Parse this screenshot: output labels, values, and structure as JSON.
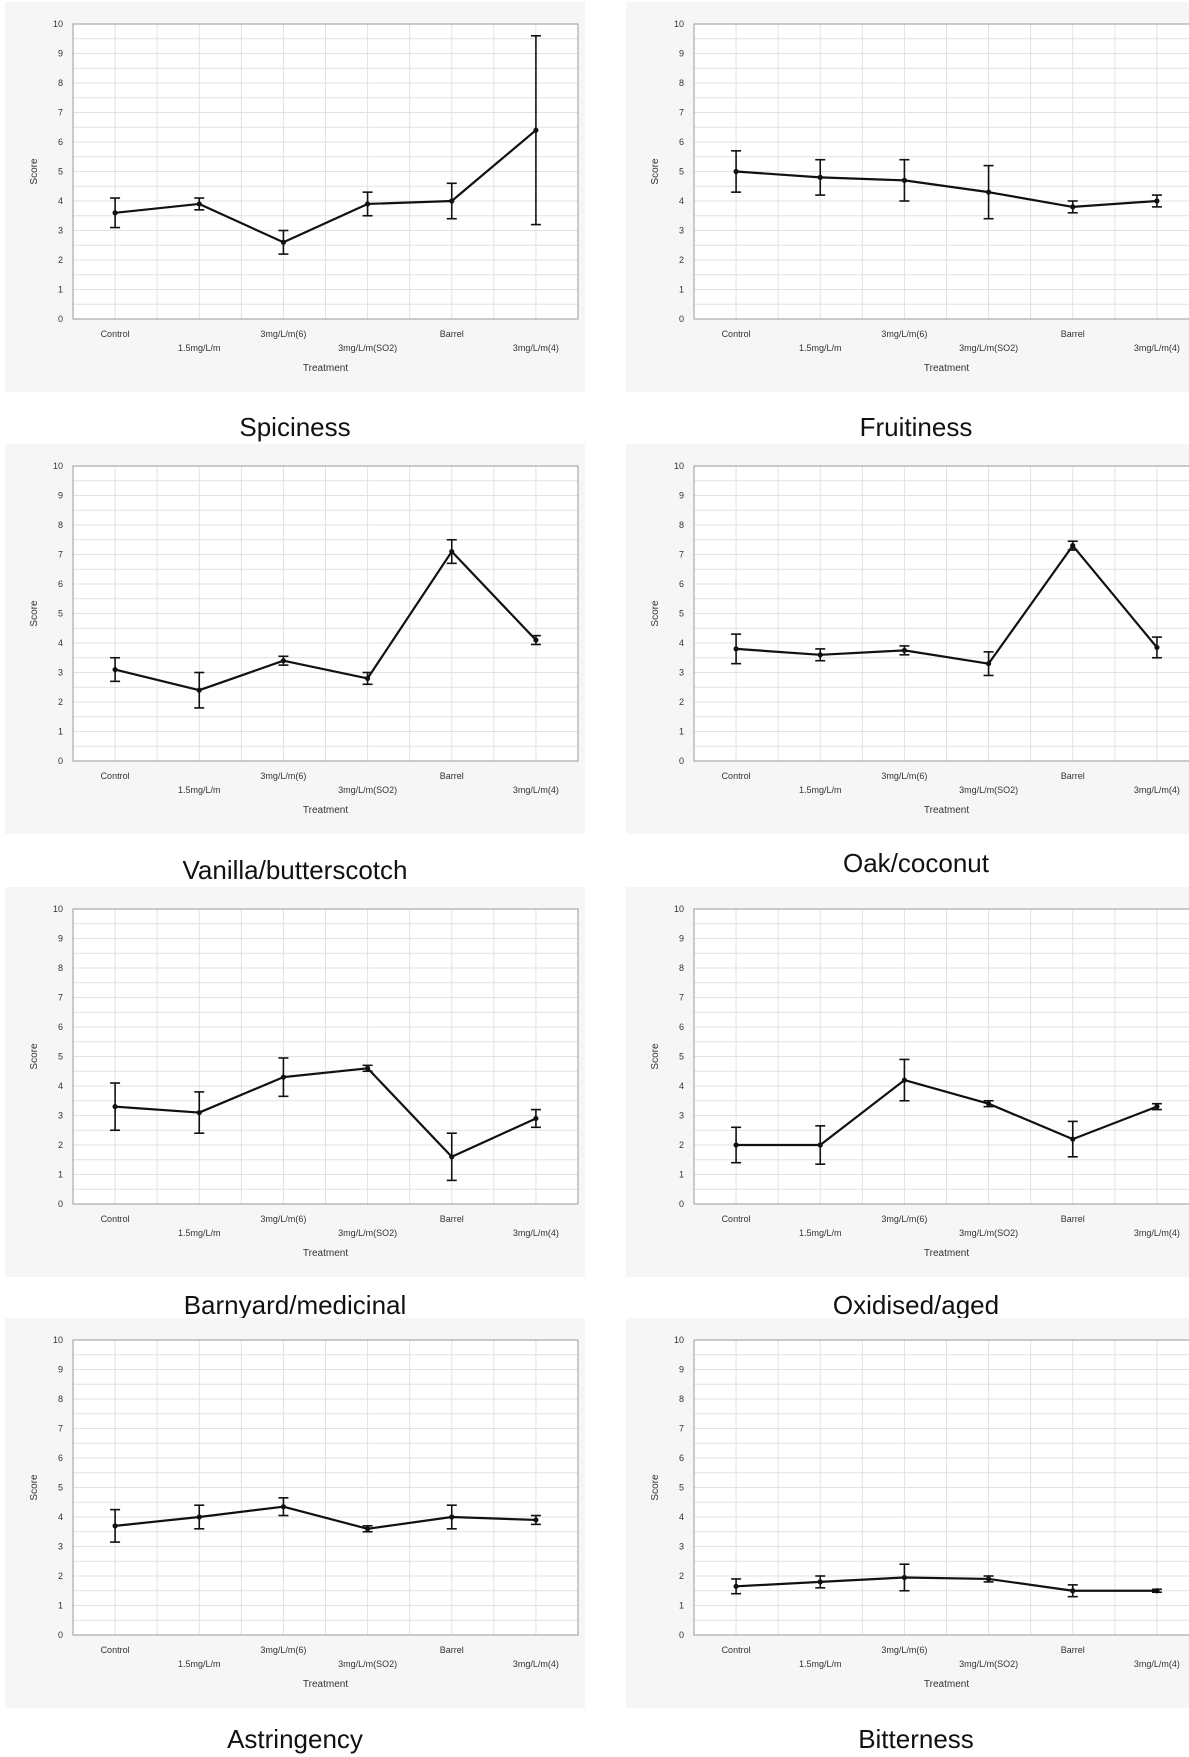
{
  "chart_data": [
    {
      "type": "line",
      "title": "",
      "caption": "Spiciness",
      "xlabel": "Treatment",
      "ylabel": "Score",
      "ylim": [
        0,
        10
      ],
      "grid": true,
      "categories": [
        "Control",
        "1.5mg/L/m",
        "3mg/L/m(6)",
        "3mg/L/m(SO2)",
        "Barrel",
        "3mg/L/m(4)"
      ],
      "values": [
        3.6,
        3.9,
        2.6,
        3.9,
        4.0,
        6.4
      ],
      "errors": [
        0.5,
        0.2,
        0.4,
        0.4,
        0.6,
        3.2
      ]
    },
    {
      "type": "line",
      "title": "",
      "caption": "Fruitiness",
      "xlabel": "Treatment",
      "ylabel": "Score",
      "ylim": [
        0,
        10
      ],
      "grid": true,
      "categories": [
        "Control",
        "1.5mg/L/m",
        "3mg/L/m(6)",
        "3mg/L/m(SO2)",
        "Barrel",
        "3mg/L/m(4)"
      ],
      "values": [
        5.0,
        4.8,
        4.7,
        4.3,
        3.8,
        4.0
      ],
      "errors": [
        0.7,
        0.6,
        0.7,
        0.9,
        0.2,
        0.2
      ]
    },
    {
      "type": "line",
      "title": "",
      "caption": "Vanilla/butterscotch",
      "xlabel": "Treatment",
      "ylabel": "Score",
      "ylim": [
        0,
        10
      ],
      "grid": true,
      "categories": [
        "Control",
        "1.5mg/L/m",
        "3mg/L/m(6)",
        "3mg/L/m(SO2)",
        "Barrel",
        "3mg/L/m(4)"
      ],
      "values": [
        3.1,
        2.4,
        3.4,
        2.8,
        7.1,
        4.1
      ],
      "errors": [
        0.4,
        0.6,
        0.15,
        0.2,
        0.4,
        0.15
      ]
    },
    {
      "type": "line",
      "title": "",
      "caption": "Oak/coconut",
      "xlabel": "Treatment",
      "ylabel": "Score",
      "ylim": [
        0,
        10
      ],
      "grid": true,
      "categories": [
        "Control",
        "1.5mg/L/m",
        "3mg/L/m(6)",
        "3mg/L/m(SO2)",
        "Barrel",
        "3mg/L/m(4)"
      ],
      "values": [
        3.8,
        3.6,
        3.75,
        3.3,
        7.3,
        3.85
      ],
      "errors": [
        0.5,
        0.2,
        0.15,
        0.4,
        0.15,
        0.35
      ]
    },
    {
      "type": "line",
      "title": "",
      "caption": "Barnyard/medicinal",
      "xlabel": "Treatment",
      "ylabel": "Score",
      "ylim": [
        0,
        10
      ],
      "grid": true,
      "categories": [
        "Control",
        "1.5mg/L/m",
        "3mg/L/m(6)",
        "3mg/L/m(SO2)",
        "Barrel",
        "3mg/L/m(4)"
      ],
      "values": [
        3.3,
        3.1,
        4.3,
        4.6,
        1.6,
        2.9
      ],
      "errors": [
        0.8,
        0.7,
        0.65,
        0.1,
        0.8,
        0.3
      ]
    },
    {
      "type": "line",
      "title": "",
      "caption": "Oxidised/aged",
      "xlabel": "Treatment",
      "ylabel": "Score",
      "ylim": [
        0,
        10
      ],
      "grid": true,
      "categories": [
        "Control",
        "1.5mg/L/m",
        "3mg/L/m(6)",
        "3mg/L/m(SO2)",
        "Barrel",
        "3mg/L/m(4)"
      ],
      "values": [
        2.0,
        2.0,
        4.2,
        3.4,
        2.2,
        3.3
      ],
      "errors": [
        0.6,
        0.65,
        0.7,
        0.1,
        0.6,
        0.1
      ]
    },
    {
      "type": "line",
      "title": "",
      "caption": "Astringency",
      "xlabel": "Treatment",
      "ylabel": "Score",
      "ylim": [
        0,
        10
      ],
      "grid": true,
      "categories": [
        "Control",
        "1.5mg/L/m",
        "3mg/L/m(6)",
        "3mg/L/m(SO2)",
        "Barrel",
        "3mg/L/m(4)"
      ],
      "values": [
        3.7,
        4.0,
        4.35,
        3.6,
        4.0,
        3.9
      ],
      "errors": [
        0.55,
        0.4,
        0.3,
        0.1,
        0.4,
        0.15
      ]
    },
    {
      "type": "line",
      "title": "",
      "caption": "Bitterness",
      "xlabel": "Treatment",
      "ylabel": "Score",
      "ylim": [
        0,
        10
      ],
      "grid": true,
      "categories": [
        "Control",
        "1.5mg/L/m",
        "3mg/L/m(6)",
        "3mg/L/m(SO2)",
        "Barrel",
        "3mg/L/m(4)"
      ],
      "values": [
        1.65,
        1.8,
        1.95,
        1.9,
        1.5,
        1.5
      ],
      "errors": [
        0.25,
        0.2,
        0.45,
        0.1,
        0.2,
        0.05
      ]
    }
  ]
}
